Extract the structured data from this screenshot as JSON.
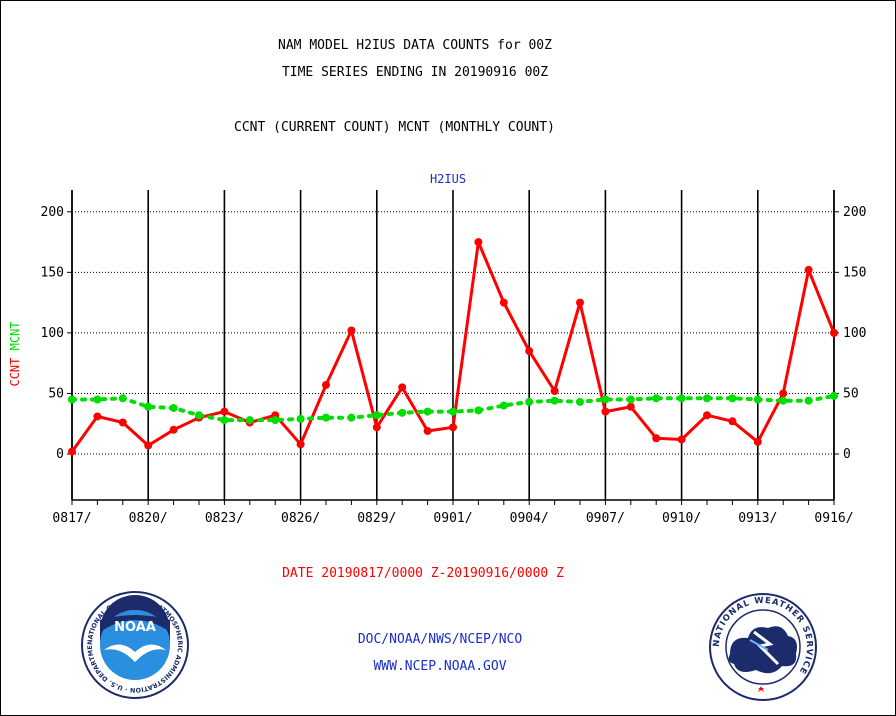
{
  "titles": {
    "line1": "NAM MODEL H2IUS DATA COUNTS for 00Z",
    "line2": "TIME SERIES ENDING IN 20190916 00Z",
    "line3": "CCNT (CURRENT COUNT) MCNT (MONTHLY COUNT)",
    "station": "H2IUS"
  },
  "footer": {
    "date_range": "DATE 20190817/0000 Z-20190916/0000 Z",
    "doc": "DOC/NOAA/NWS/NCEP/NCO",
    "www": "WWW.NCEP.NOAA.GOV"
  },
  "logos": {
    "left": {
      "icon": "noaa-logo-icon",
      "text": "NOAA",
      "ring_text": "NATIONAL OCEANIC AND ATMOSPHERIC ADMINISTRATION · U.S. DEPARTMENT OF COMMERCE"
    },
    "right": {
      "icon": "nws-logo-icon",
      "ring_text": "NATIONAL WEATHER SERVICE"
    }
  },
  "colors": {
    "ccnt": "#ff0000",
    "mcnt": "#00dd00",
    "text_blue": "#1a2bd0"
  },
  "chart_data": {
    "type": "line",
    "ylabel_parts": [
      {
        "text": "CCNT",
        "color": "#ff0000"
      },
      {
        "text": "MCNT",
        "color": "#00dd00"
      }
    ],
    "x_tick_labels": [
      "0817/",
      "0820/",
      "0823/",
      "0826/",
      "0829/",
      "0901/",
      "0904/",
      "0907/",
      "0910/",
      "0913/",
      "0916/"
    ],
    "y_ticks": [
      0,
      50,
      100,
      150,
      200
    ],
    "ylim": [
      -38,
      218
    ],
    "grid": true,
    "x": [
      "0817",
      "0818",
      "0819",
      "0820",
      "0821",
      "0822",
      "0823",
      "0824",
      "0825",
      "0826",
      "0827",
      "0828",
      "0829",
      "0830",
      "0831",
      "0901",
      "0902",
      "0903",
      "0904",
      "0905",
      "0906",
      "0907",
      "0908",
      "0909",
      "0910",
      "0911",
      "0912",
      "0913",
      "0914",
      "0915",
      "0916"
    ],
    "series": [
      {
        "name": "CCNT",
        "style": "solid",
        "values": [
          2,
          31,
          26,
          7,
          20,
          30,
          35,
          26,
          32,
          8,
          57,
          102,
          22,
          55,
          19,
          22,
          175,
          125,
          85,
          52,
          125,
          35,
          39,
          13,
          12,
          32,
          27,
          10,
          50,
          152,
          100
        ]
      },
      {
        "name": "MCNT",
        "style": "dotted",
        "values": [
          45,
          45,
          46,
          39,
          38,
          32,
          28,
          28,
          28,
          29,
          30,
          30,
          32,
          34,
          35,
          35,
          36,
          40,
          43,
          44,
          43,
          45,
          45,
          46,
          46,
          46,
          46,
          45,
          44,
          44,
          48
        ]
      }
    ]
  }
}
